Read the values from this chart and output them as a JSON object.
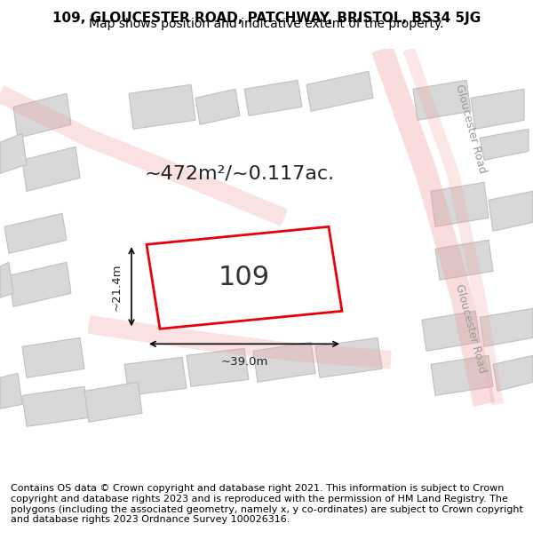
{
  "title_line1": "109, GLOUCESTER ROAD, PATCHWAY, BRISTOL, BS34 5JG",
  "title_line2": "Map shows position and indicative extent of the property.",
  "footer_text": "Contains OS data © Crown copyright and database right 2021. This information is subject to Crown copyright and database rights 2023 and is reproduced with the permission of HM Land Registry. The polygons (including the associated geometry, namely x, y co-ordinates) are subject to Crown copyright and database rights 2023 Ordnance Survey 100026316.",
  "property_label": "109",
  "area_label": "~472m²/~0.117ac.",
  "width_label": "~39.0m",
  "height_label": "~21.4m",
  "bg_color": "#f5f5f5",
  "map_bg_color": "#ffffff",
  "building_fill": "#d9d9d9",
  "building_stroke": "#cccccc",
  "highlight_fill": "#ffffff",
  "highlight_stroke": "#e8000a",
  "road_color": "#f0a0a0",
  "road_label_color": "#888888",
  "title_fontsize": 11,
  "subtitle_fontsize": 10,
  "footer_fontsize": 8.0,
  "label_fontsize": 22,
  "area_fontsize": 16
}
